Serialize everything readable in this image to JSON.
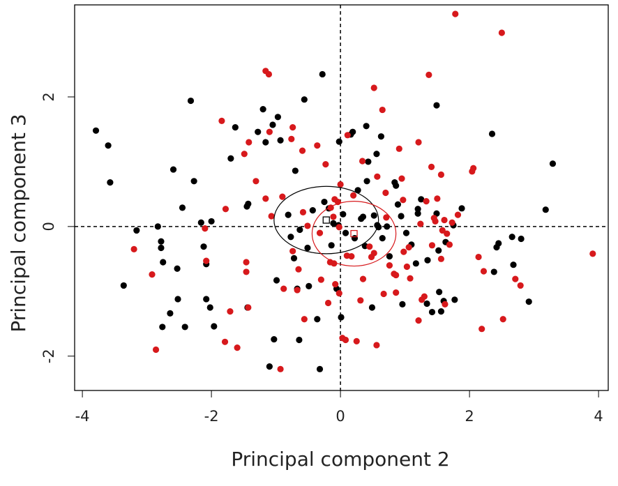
{
  "chart_data": {
    "type": "scatter",
    "x_label": "Principal component 2",
    "y_label": "Principal component 3",
    "xlim": [
      -4.12,
      4.15
    ],
    "ylim": [
      -2.53,
      3.42
    ],
    "xticks": [
      -4,
      -2,
      0,
      2,
      4
    ],
    "yticks": [
      -2,
      0,
      2
    ],
    "vlines": [
      0
    ],
    "hlines": [
      0
    ],
    "series": [
      {
        "color": "#000000",
        "x": [
          -3.79,
          -3.6,
          -3.57,
          -3.16,
          -3.36,
          -2.83,
          -2.78,
          -2.78,
          -2.75,
          -2.76,
          -2.64,
          -2.59,
          -2.53,
          -2.52,
          -2.45,
          -2.41,
          -2.32,
          -2.27,
          -2.16,
          -2.12,
          -2.08,
          -2.08,
          -2.0,
          -2.02,
          -1.96,
          -1.7,
          -1.63,
          -1.45,
          -1.43,
          -1.44,
          -1.28,
          -1.2,
          -1.16,
          -1.1,
          -1.05,
          -1.03,
          -0.97,
          -0.99,
          -0.93,
          -0.81,
          -0.77,
          -0.72,
          -0.7,
          -0.67,
          -0.64,
          -0.63,
          -0.56,
          -0.51,
          -0.49,
          -0.43,
          -0.36,
          -0.32,
          -0.28,
          -0.25,
          -0.18,
          -0.14,
          -0.11,
          -0.06,
          -0.03,
          -0.02,
          0.01,
          0.04,
          0.08,
          0.16,
          0.19,
          0.22,
          0.27,
          0.32,
          0.35,
          0.38,
          0.41,
          0.4,
          0.43,
          0.49,
          0.52,
          0.56,
          0.57,
          0.59,
          0.63,
          0.65,
          0.72,
          0.76,
          0.84,
          0.89,
          0.86,
          0.94,
          0.96,
          1.02,
          1.1,
          1.17,
          1.2,
          1.2,
          1.25,
          1.34,
          1.35,
          1.42,
          1.49,
          1.49,
          1.52,
          1.53,
          1.56,
          1.6,
          1.63,
          1.75,
          1.77,
          1.88,
          2.35,
          2.38,
          2.42,
          2.45,
          2.68,
          2.66,
          2.8,
          2.92,
          3.18,
          3.29
        ],
        "y": [
          1.48,
          1.25,
          0.68,
          -0.06,
          -0.91,
          0,
          -0.23,
          -0.33,
          -0.55,
          -1.55,
          -1.34,
          0.88,
          -0.65,
          -1.12,
          0.29,
          -1.55,
          1.94,
          0.7,
          0.06,
          -0.31,
          -0.58,
          -1.12,
          0.08,
          -1.25,
          -1.54,
          1.05,
          1.53,
          0.31,
          0.35,
          -1.25,
          1.46,
          1.81,
          1.3,
          -2.16,
          1.57,
          -1.74,
          1.69,
          -0.83,
          1.33,
          0.18,
          -0.16,
          -0.49,
          0.86,
          -0.96,
          -1.75,
          -0.05,
          1.96,
          -0.33,
          -0.92,
          0.25,
          -1.43,
          -2.2,
          2.35,
          0.38,
          0.28,
          -0.29,
          0.05,
          -0.96,
          0.02,
          1.31,
          -1.4,
          0.19,
          -0.1,
          1.42,
          1.46,
          -0.18,
          0.56,
          0.12,
          0.15,
          -0.3,
          0.7,
          1.55,
          1.0,
          -1.25,
          0.17,
          1.12,
          0.02,
          -0.01,
          1.39,
          -0.18,
          0,
          -0.46,
          0.68,
          0.34,
          0.63,
          0.16,
          -1.2,
          -0.1,
          -0.28,
          -0.57,
          0.2,
          0.27,
          0.42,
          -1.19,
          -0.52,
          -1.32,
          0.2,
          1.87,
          -0.37,
          -1.01,
          -1.31,
          -1.15,
          -0.24,
          0.02,
          -1.13,
          0.28,
          1.43,
          -0.7,
          -0.32,
          -0.26,
          -0.59,
          -0.16,
          -0.19,
          -1.16,
          0.26,
          0.97
        ],
        "centroid": [
          -0.22,
          0.1
        ],
        "ellipse_radii": [
          0.81,
          0.52
        ]
      },
      {
        "color": "#d7191c",
        "x": [
          -3.2,
          -2.92,
          -2.86,
          -2.1,
          -2.08,
          -1.84,
          -1.79,
          -1.78,
          -1.71,
          -1.6,
          -1.49,
          -1.46,
          -1.46,
          -1.43,
          -1.42,
          -1.31,
          -1.16,
          -1.11,
          -1.1,
          -1.16,
          -1.07,
          -0.93,
          -0.9,
          -0.88,
          -0.76,
          -0.74,
          -0.74,
          -0.67,
          -0.65,
          -0.59,
          -0.58,
          -0.56,
          -0.51,
          -0.36,
          -0.32,
          -0.3,
          -0.23,
          -0.19,
          -0.16,
          -0.15,
          -0.11,
          -0.1,
          -0.09,
          -0.08,
          -0.04,
          -0.02,
          -0.02,
          0,
          0.03,
          0.08,
          0.1,
          0.11,
          0.17,
          0.2,
          0.25,
          0.31,
          0.34,
          0.35,
          0.45,
          0.48,
          0.52,
          0.52,
          0.57,
          0.56,
          0.65,
          0.67,
          0.7,
          0.71,
          0.76,
          0.83,
          0.86,
          0.86,
          0.91,
          0.95,
          0.97,
          0.98,
          1.03,
          1.06,
          1.08,
          1.21,
          1.21,
          1.24,
          1.26,
          1.3,
          1.33,
          1.37,
          1.41,
          1.42,
          1.45,
          1.47,
          1.5,
          1.56,
          1.56,
          1.58,
          1.62,
          1.61,
          1.65,
          1.69,
          1.73,
          1.78,
          1.82,
          2.04,
          2.06,
          2.19,
          2.14,
          2.22,
          2.5,
          2.52,
          2.71,
          2.79,
          3.91
        ],
        "y": [
          -0.35,
          -0.74,
          -1.9,
          -0.03,
          -0.53,
          1.63,
          -1.78,
          0.27,
          -1.31,
          -1.87,
          1.12,
          -0.55,
          -0.7,
          -1.25,
          1.3,
          0.7,
          2.4,
          2.35,
          1.46,
          0.43,
          0.16,
          -2.2,
          0.46,
          -0.96,
          1.35,
          1.53,
          -0.38,
          -0.98,
          -0.66,
          1.17,
          0.22,
          -1.43,
          0.01,
          1.25,
          -0.1,
          -0.82,
          0.96,
          -1.18,
          -0.55,
          0.29,
          0.15,
          -0.57,
          0.42,
          -0.89,
          0.38,
          -1.03,
          -0.01,
          0.65,
          -1.72,
          -1.75,
          -0.45,
          1.41,
          -0.46,
          0.48,
          -1.77,
          -1.14,
          1.01,
          -0.81,
          -0.31,
          -0.47,
          2.14,
          -0.41,
          0.77,
          -1.83,
          1.8,
          -1.04,
          0.52,
          0.14,
          -0.6,
          -0.73,
          -0.75,
          -1.02,
          1.2,
          0.74,
          0.41,
          -0.39,
          -0.62,
          -0.32,
          -0.8,
          1.3,
          -1.45,
          0.04,
          -1.13,
          -1.08,
          0.39,
          2.34,
          0.92,
          -0.29,
          0.13,
          0.08,
          0.43,
          0.8,
          -0.5,
          -0.06,
          -1.2,
          0.1,
          -0.11,
          -0.28,
          0.06,
          3.28,
          0.18,
          0.85,
          0.9,
          -1.58,
          -0.47,
          -0.69,
          2.99,
          -1.43,
          -0.81,
          -0.91,
          -0.42
        ],
        "centroid": [
          0.21,
          -0.11
        ],
        "ellipse_radii": [
          0.65,
          0.5
        ]
      }
    ]
  }
}
